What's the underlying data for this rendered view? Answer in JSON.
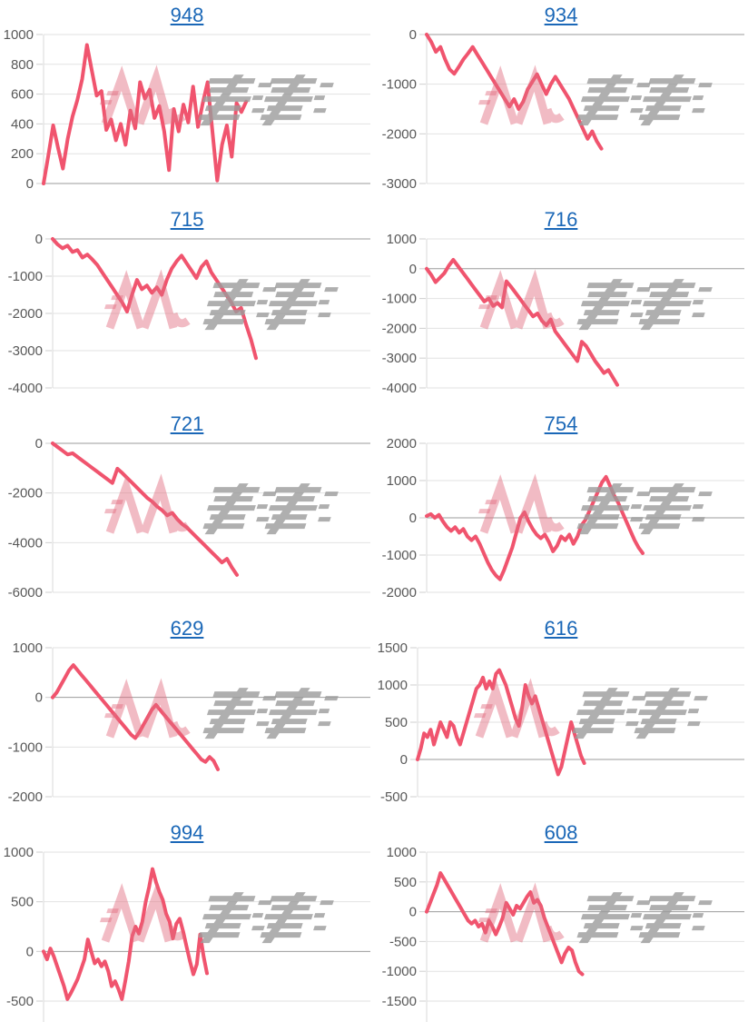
{
  "page": {
    "background": "#ffffff"
  },
  "style": {
    "line_color": "#F0546E",
    "grid_color": "#E2E2E2",
    "zero_line_color": "#9B9B9B",
    "tick_dash_color": "#CFCFCF",
    "axis_line_color": "#DADADA",
    "axis_label_color": "#595959",
    "title_link_color": "#1A67B7",
    "watermark_pink": "#E26B7E",
    "watermark_gray": "#9C9C9C"
  },
  "watermark": {
    "label": "minpachi-logo-watermark"
  },
  "chart_data": [
    {
      "type": "line",
      "title": "948",
      "xlabel": "",
      "ylabel": "",
      "ylim": [
        0,
        1000
      ],
      "yticks": [
        1000,
        800,
        600,
        400,
        200,
        0
      ],
      "grid": true,
      "legend": "none",
      "end_fraction": 0.62,
      "series": [
        0,
        190,
        390,
        240,
        100,
        300,
        450,
        560,
        700,
        930,
        760,
        590,
        620,
        360,
        430,
        290,
        400,
        260,
        490,
        370,
        680,
        570,
        630,
        440,
        520,
        350,
        90,
        500,
        350,
        530,
        410,
        650,
        380,
        540,
        680,
        350,
        20,
        260,
        390,
        180,
        540,
        480,
        550
      ]
    },
    {
      "type": "line",
      "title": "934",
      "xlabel": "",
      "ylabel": "",
      "ylim": [
        -3000,
        0
      ],
      "yticks": [
        0,
        -1000,
        -2000,
        -3000
      ],
      "grid": true,
      "legend": "none",
      "end_fraction": 0.55,
      "series": [
        0,
        -150,
        -350,
        -250,
        -500,
        -700,
        -790,
        -650,
        -500,
        -380,
        -250,
        -400,
        -550,
        -700,
        -850,
        -1000,
        -1150,
        -1300,
        -1450,
        -1300,
        -1500,
        -1350,
        -1100,
        -950,
        -800,
        -1000,
        -1200,
        -1000,
        -850,
        -1000,
        -1150,
        -1300,
        -1500,
        -1700,
        -1900,
        -2100,
        -1950,
        -2150,
        -2300
      ]
    },
    {
      "type": "line",
      "title": "715",
      "xlabel": "",
      "ylabel": "",
      "ylim": [
        -4000,
        0
      ],
      "yticks": [
        0,
        -1000,
        -2000,
        -3000,
        -4000
      ],
      "grid": true,
      "legend": "none",
      "end_fraction": 0.64,
      "series": [
        0,
        -150,
        -250,
        -180,
        -350,
        -300,
        -500,
        -420,
        -550,
        -700,
        -900,
        -1100,
        -1300,
        -1500,
        -1700,
        -1950,
        -1500,
        -1100,
        -1350,
        -1250,
        -1450,
        -1300,
        -1500,
        -1100,
        -800,
        -600,
        -450,
        -650,
        -850,
        -1050,
        -750,
        -600,
        -900,
        -1100,
        -1300,
        -1500,
        -1700,
        -1950,
        -1850,
        -2300,
        -2700,
        -3200
      ]
    },
    {
      "type": "line",
      "title": "716",
      "xlabel": "",
      "ylabel": "",
      "ylim": [
        -4000,
        1000
      ],
      "yticks": [
        1000,
        0,
        -1000,
        -2000,
        -3000,
        -4000
      ],
      "grid": true,
      "legend": "none",
      "end_fraction": 0.6,
      "series": [
        0,
        -200,
        -450,
        -300,
        -150,
        100,
        300,
        100,
        -100,
        -300,
        -500,
        -700,
        -900,
        -1100,
        -1000,
        -1250,
        -1150,
        -1300,
        -420,
        -600,
        -800,
        -1000,
        -1200,
        -1400,
        -1600,
        -1500,
        -1750,
        -1900,
        -1700,
        -2100,
        -2300,
        -2500,
        -2700,
        -2900,
        -3100,
        -2450,
        -2600,
        -2850,
        -3100,
        -3300,
        -3500,
        -3400,
        -3650,
        -3900
      ]
    },
    {
      "type": "line",
      "title": "721",
      "xlabel": "",
      "ylabel": "",
      "ylim": [
        -6000,
        0
      ],
      "yticks": [
        0,
        -2000,
        -4000,
        -6000
      ],
      "grid": true,
      "legend": "none",
      "end_fraction": 0.58,
      "series": [
        0,
        -150,
        -300,
        -450,
        -400,
        -550,
        -700,
        -850,
        -1000,
        -1150,
        -1300,
        -1450,
        -1600,
        -1020,
        -1200,
        -1400,
        -1600,
        -1800,
        -2000,
        -2200,
        -2350,
        -2550,
        -2700,
        -2900,
        -2800,
        -3050,
        -3250,
        -3400,
        -3600,
        -3800,
        -4000,
        -4200,
        -4400,
        -4600,
        -4800,
        -4650,
        -5000,
        -5300
      ]
    },
    {
      "type": "line",
      "title": "754",
      "xlabel": "",
      "ylabel": "",
      "ylim": [
        -2000,
        2000
      ],
      "yticks": [
        2000,
        1000,
        0,
        -1000,
        -2000
      ],
      "grid": true,
      "legend": "none",
      "end_fraction": 0.68,
      "series": [
        50,
        100,
        0,
        80,
        -100,
        -250,
        -350,
        -250,
        -400,
        -300,
        -500,
        -600,
        -500,
        -700,
        -950,
        -1200,
        -1400,
        -1550,
        -1650,
        -1400,
        -1100,
        -800,
        -400,
        0,
        150,
        -100,
        -300,
        -450,
        -550,
        -450,
        -650,
        -900,
        -750,
        -500,
        -600,
        -450,
        -700,
        -500,
        -200,
        -50,
        200,
        450,
        700,
        950,
        1100,
        850,
        600,
        400,
        150,
        -100,
        -350,
        -600,
        -800,
        -950
      ]
    },
    {
      "type": "line",
      "title": "629",
      "xlabel": "",
      "ylabel": "",
      "ylim": [
        -2000,
        1000
      ],
      "yticks": [
        1000,
        0,
        -1000,
        -2000
      ],
      "grid": true,
      "legend": "none",
      "end_fraction": 0.52,
      "series": [
        0,
        100,
        250,
        400,
        550,
        650,
        550,
        450,
        350,
        250,
        150,
        50,
        -50,
        -150,
        -250,
        -350,
        -450,
        -550,
        -650,
        -750,
        -820,
        -700,
        -550,
        -400,
        -250,
        -150,
        -250,
        -350,
        -450,
        -550,
        -650,
        -750,
        -850,
        -950,
        -1050,
        -1150,
        -1250,
        -1300,
        -1200,
        -1280,
        -1450
      ]
    },
    {
      "type": "line",
      "title": "616",
      "xlabel": "",
      "ylabel": "",
      "ylim": [
        -500,
        1500
      ],
      "yticks": [
        1500,
        1000,
        500,
        0,
        -500
      ],
      "grid": true,
      "legend": "none",
      "end_fraction": 0.51,
      "series": [
        0,
        150,
        350,
        300,
        400,
        200,
        350,
        500,
        400,
        300,
        500,
        450,
        300,
        200,
        350,
        500,
        650,
        800,
        950,
        1000,
        1100,
        950,
        1050,
        950,
        1150,
        1200,
        1100,
        1000,
        850,
        700,
        550,
        450,
        700,
        1000,
        850,
        750,
        850,
        700,
        550,
        400,
        250,
        100,
        -50,
        -200,
        -100,
        100,
        300,
        500,
        350,
        200,
        50,
        -50
      ]
    },
    {
      "type": "line",
      "title": "994",
      "xlabel": "",
      "ylabel": "",
      "ylim": [
        -500,
        1000
      ],
      "yticks": [
        1000,
        500,
        0,
        -500
      ],
      "grid": true,
      "legend": "none",
      "end_fraction": 0.5,
      "series": [
        0,
        -80,
        30,
        -50,
        -150,
        -250,
        -350,
        -480,
        -420,
        -350,
        -280,
        -180,
        -80,
        120,
        0,
        -120,
        -80,
        -150,
        -100,
        -200,
        -350,
        -300,
        -380,
        -480,
        -300,
        -100,
        150,
        250,
        180,
        300,
        500,
        650,
        830,
        700,
        600,
        520,
        380,
        300,
        130,
        280,
        330,
        200,
        50,
        -100,
        -230,
        -130,
        170,
        -50,
        -220
      ]
    },
    {
      "type": "line",
      "title": "608",
      "xlabel": "",
      "ylabel": "",
      "ylim": [
        -1500,
        1000
      ],
      "yticks": [
        1000,
        500,
        0,
        -500,
        -1000,
        -1500
      ],
      "grid": true,
      "legend": "none",
      "end_fraction": 0.49,
      "series": [
        0,
        150,
        300,
        450,
        650,
        550,
        450,
        350,
        250,
        150,
        50,
        -50,
        -150,
        -200,
        -150,
        -250,
        -200,
        -350,
        -150,
        -250,
        -380,
        -250,
        -100,
        150,
        50,
        -50,
        100,
        50,
        150,
        250,
        330,
        150,
        200,
        100,
        -100,
        -250,
        -400,
        -550,
        -700,
        -850,
        -700,
        -600,
        -650,
        -850,
        -1000,
        -1050
      ]
    }
  ]
}
